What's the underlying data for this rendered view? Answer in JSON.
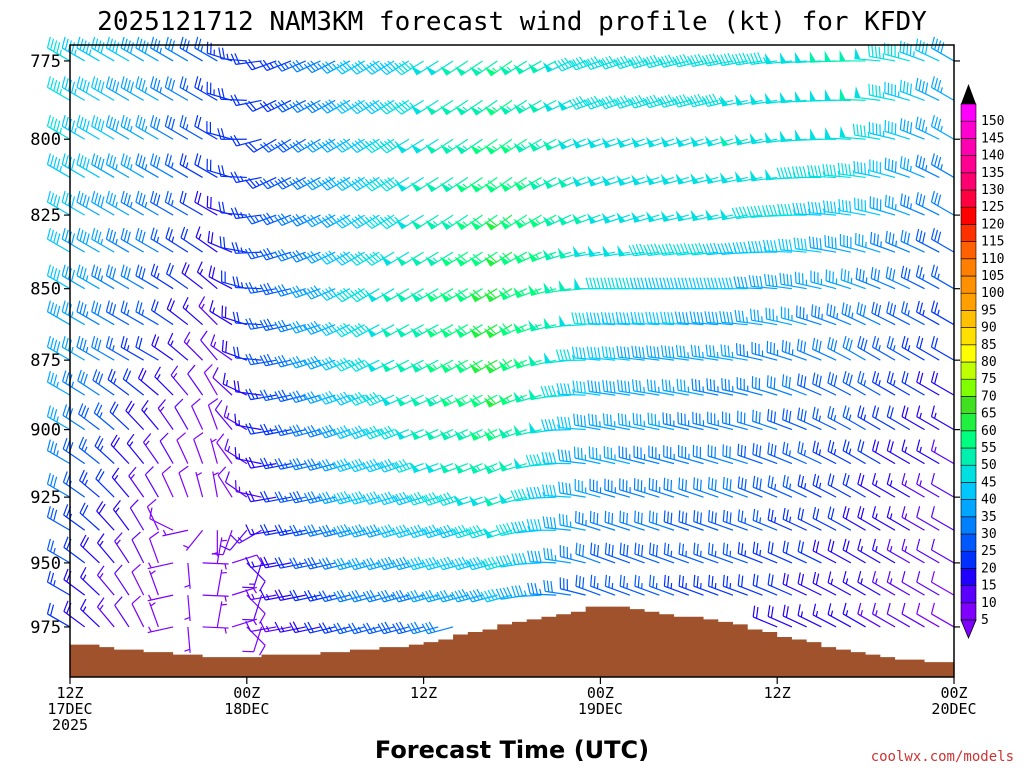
{
  "chart_data": {
    "type": "wind-barb-profile",
    "title": "2025121712 NAM3KM forecast wind profile (kt) for KFDY",
    "xlabel": "Forecast Time (UTC)",
    "ylabel": "",
    "y_axis": {
      "scale": "log-pressure",
      "range_hpa": [
        770,
        995
      ],
      "inverted": true,
      "ticks": [
        "775",
        "800",
        "825",
        "850",
        "875",
        "900",
        "925",
        "950",
        "975"
      ]
    },
    "x_axis": {
      "range_hours": [
        0,
        60
      ],
      "ticks": [
        {
          "h": 0,
          "lines": [
            "12Z",
            "17DEC",
            "2025"
          ]
        },
        {
          "h": 12,
          "lines": [
            "00Z",
            "18DEC"
          ]
        },
        {
          "h": 24,
          "lines": [
            "12Z"
          ]
        },
        {
          "h": 36,
          "lines": [
            "00Z",
            "19DEC"
          ]
        },
        {
          "h": 48,
          "lines": [
            "12Z"
          ]
        },
        {
          "h": 60,
          "lines": [
            "00Z",
            "20DEC"
          ]
        }
      ]
    },
    "surface_pressure_hpa": [
      [
        0,
        982
      ],
      [
        1,
        982
      ],
      [
        2,
        983
      ],
      [
        3,
        984
      ],
      [
        4,
        984
      ],
      [
        5,
        985
      ],
      [
        6,
        985
      ],
      [
        7,
        986
      ],
      [
        8,
        986
      ],
      [
        9,
        987
      ],
      [
        10,
        987
      ],
      [
        11,
        987
      ],
      [
        12,
        987
      ],
      [
        13,
        986
      ],
      [
        14,
        986
      ],
      [
        15,
        986
      ],
      [
        16,
        986
      ],
      [
        17,
        985
      ],
      [
        18,
        985
      ],
      [
        19,
        984
      ],
      [
        20,
        984
      ],
      [
        21,
        983
      ],
      [
        22,
        983
      ],
      [
        23,
        982
      ],
      [
        24,
        981
      ],
      [
        25,
        980
      ],
      [
        26,
        978
      ],
      [
        27,
        977
      ],
      [
        28,
        976
      ],
      [
        29,
        974
      ],
      [
        30,
        973
      ],
      [
        31,
        972
      ],
      [
        32,
        971
      ],
      [
        33,
        970
      ],
      [
        34,
        969
      ],
      [
        35,
        967
      ],
      [
        36,
        967
      ],
      [
        37,
        967
      ],
      [
        38,
        968
      ],
      [
        39,
        969
      ],
      [
        40,
        970
      ],
      [
        41,
        971
      ],
      [
        42,
        971
      ],
      [
        43,
        972
      ],
      [
        44,
        973
      ],
      [
        45,
        974
      ],
      [
        46,
        976
      ],
      [
        47,
        977
      ],
      [
        48,
        979
      ],
      [
        49,
        980
      ],
      [
        50,
        981
      ],
      [
        51,
        983
      ],
      [
        52,
        984
      ],
      [
        53,
        985
      ],
      [
        54,
        986
      ],
      [
        55,
        987
      ],
      [
        56,
        988
      ],
      [
        57,
        988
      ],
      [
        58,
        989
      ],
      [
        59,
        989
      ],
      [
        60,
        990
      ]
    ],
    "barb_levels_hpa": [
      775,
      800,
      825,
      850,
      875,
      900,
      925,
      950,
      975
    ],
    "wind_samples": [
      {
        "hour": 0,
        "speeds_kt": [
          45,
          45,
          42,
          40,
          38,
          35,
          30,
          25,
          20
        ],
        "dirs_deg": [
          300,
          300,
          300,
          300,
          300,
          300,
          300,
          300,
          300
        ]
      },
      {
        "hour": 6,
        "speeds_kt": [
          38,
          35,
          33,
          28,
          22,
          15,
          10,
          8,
          5
        ],
        "dirs_deg": [
          300,
          300,
          300,
          300,
          300,
          320,
          330,
          340,
          340
        ]
      },
      {
        "hour": 10,
        "speeds_kt": [
          25,
          22,
          18,
          15,
          10,
          8,
          5,
          5,
          5
        ],
        "dirs_deg": [
          300,
          300,
          300,
          310,
          320,
          340,
          350,
          10,
          10
        ]
      },
      {
        "hour": 14,
        "speeds_kt": [
          20,
          22,
          25,
          25,
          25,
          20,
          18,
          15,
          10
        ],
        "dirs_deg": [
          250,
          240,
          250,
          260,
          260,
          260,
          260,
          260,
          260
        ]
      },
      {
        "hour": 20,
        "speeds_kt": [
          40,
          42,
          42,
          45,
          45,
          42,
          40,
          35,
          25
        ],
        "dirs_deg": [
          240,
          240,
          240,
          240,
          245,
          250,
          255,
          255,
          255
        ]
      },
      {
        "hour": 30,
        "speeds_kt": [
          55,
          57,
          60,
          62,
          62,
          58,
          50,
          45,
          35
        ],
        "dirs_deg": [
          235,
          235,
          235,
          240,
          240,
          245,
          250,
          255,
          255
        ]
      },
      {
        "hour": 36,
        "speeds_kt": [
          45,
          48,
          50,
          48,
          42,
          38,
          35,
          30,
          25
        ],
        "dirs_deg": [
          250,
          250,
          250,
          270,
          275,
          280,
          285,
          290,
          290
        ]
      },
      {
        "hour": 46,
        "speeds_kt": [
          45,
          50,
          48,
          40,
          35,
          32,
          30,
          25,
          20
        ],
        "dirs_deg": [
          260,
          255,
          260,
          270,
          280,
          285,
          290,
          290,
          290
        ]
      },
      {
        "hour": 54,
        "speeds_kt": [
          52,
          48,
          42,
          35,
          30,
          25,
          20,
          18,
          15
        ],
        "dirs_deg": [
          270,
          275,
          280,
          290,
          300,
          300,
          300,
          300,
          300
        ]
      },
      {
        "hour": 60,
        "speeds_kt": [
          38,
          35,
          30,
          25,
          20,
          15,
          12,
          10,
          8
        ],
        "dirs_deg": [
          300,
          300,
          300,
          300,
          300,
          300,
          300,
          300,
          300
        ]
      }
    ],
    "colorbar": {
      "labels": [
        "5",
        "10",
        "15",
        "20",
        "25",
        "30",
        "35",
        "40",
        "45",
        "50",
        "55",
        "60",
        "65",
        "70",
        "75",
        "80",
        "85",
        "90",
        "95",
        "100",
        "105",
        "110",
        "115",
        "120",
        "125",
        "130",
        "135",
        "140",
        "145",
        "150"
      ],
      "colors": [
        "#7f00ff",
        "#5a00ff",
        "#2000ff",
        "#0030ff",
        "#0058ff",
        "#0080ff",
        "#00a6ff",
        "#00c8ff",
        "#00e0e0",
        "#00f0b0",
        "#00ff80",
        "#20f040",
        "#40e020",
        "#80ff00",
        "#c0ff00",
        "#ffff00",
        "#ffe000",
        "#ffc000",
        "#ffa000",
        "#ff9000",
        "#ff8000",
        "#ff6000",
        "#ff3000",
        "#ff0000",
        "#ff0040",
        "#ff0070",
        "#ff0090",
        "#ff00b0",
        "#ff00d0",
        "#ff00ff"
      ]
    },
    "terrain_color": "#a0522d",
    "credit": "coolwx.com/models"
  }
}
